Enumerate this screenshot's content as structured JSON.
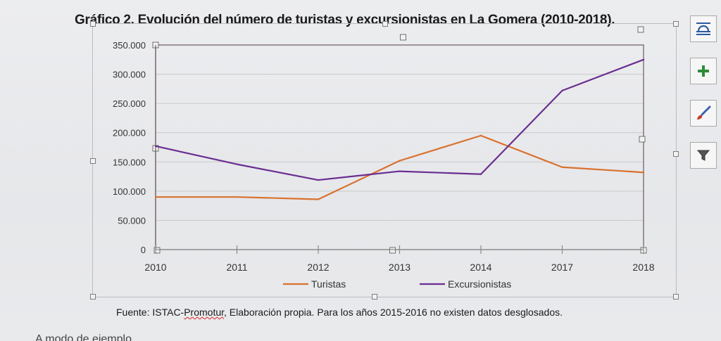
{
  "document": {
    "source_prefix": "Fuente: ISTAC-",
    "source_misspelled": "Promotur",
    "source_suffix": ", Elaboración propia. Para los años 2015-2016 no existen datos desglosados.",
    "bottom_text": "A modo de ejemplo..."
  },
  "toolbar": {
    "buttons": [
      {
        "name": "layout-options-button",
        "icon": "layout-options-icon"
      },
      {
        "name": "chart-elements-button",
        "icon": "plus-icon"
      },
      {
        "name": "chart-styles-button",
        "icon": "paintbrush-icon"
      },
      {
        "name": "chart-filters-button",
        "icon": "filter-icon"
      }
    ]
  },
  "colors": {
    "turistas": "#d9712e",
    "excursionistas": "#6a2e91",
    "grid": "#c9c9c9",
    "axis": "#8a8a8a"
  },
  "chart_data": {
    "type": "line",
    "title": "Gráfico 2. Evolución del número de turistas y excursionistas en La Gomera (2010-2018).",
    "xlabel": "",
    "ylabel": "",
    "categories": [
      "2010",
      "2011",
      "2012",
      "2013",
      "2014",
      "2017",
      "2018"
    ],
    "series": [
      {
        "name": "Turistas",
        "values": [
          90000,
          90000,
          86000,
          152000,
          195000,
          141000,
          132000
        ]
      },
      {
        "name": "Excursionistas",
        "values": [
          177000,
          146000,
          119000,
          134000,
          129000,
          272000,
          325000
        ]
      }
    ],
    "ylim": [
      0,
      350000
    ],
    "yticks": [
      "0",
      "50.000",
      "100.000",
      "150.000",
      "200.000",
      "250.000",
      "300.000",
      "350.000"
    ],
    "grid": true,
    "legend_position": "bottom"
  }
}
